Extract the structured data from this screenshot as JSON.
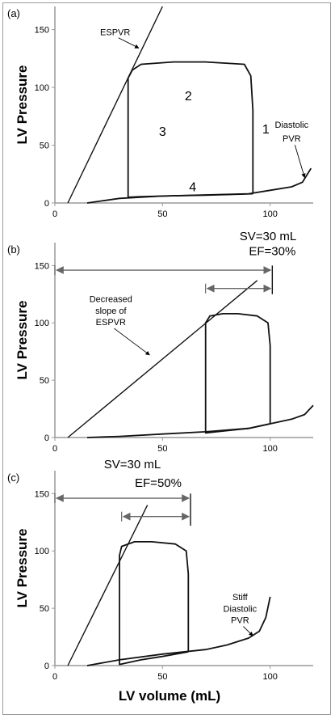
{
  "figure": {
    "x_axis_label": "LV volume (mL)"
  },
  "chart_data": [
    {
      "type": "line",
      "panel_label": "(a)",
      "ylabel": "LV Pressure",
      "xlim": [
        0,
        120
      ],
      "ylim": [
        0,
        170
      ],
      "x_ticks": [
        0,
        50,
        100
      ],
      "y_ticks": [
        0,
        50,
        100,
        150
      ],
      "grid": false,
      "series": [
        {
          "kind": "espvr",
          "x": [
            6,
            50
          ],
          "y": [
            0,
            170
          ]
        },
        {
          "kind": "pv_loop",
          "x": [
            92,
            92,
            91,
            88,
            70,
            55,
            40,
            36,
            34,
            34,
            40,
            55,
            70,
            80,
            92
          ],
          "y": [
            8,
            80,
            110,
            120,
            122,
            122,
            120,
            115,
            108,
            5,
            5.5,
            6.2,
            6.8,
            7.3,
            8
          ]
        },
        {
          "kind": "dpvr",
          "x": [
            15,
            30,
            50,
            70,
            90,
            100,
            110,
            115,
            119
          ],
          "y": [
            0,
            4,
            6,
            7,
            8,
            11,
            14,
            18,
            30
          ]
        }
      ],
      "annotations": [
        {
          "text": "ESPVR",
          "x": 28,
          "y": 145,
          "target": [
            39,
            134
          ]
        },
        {
          "text": "1",
          "x": 98,
          "y": 60
        },
        {
          "text": "2",
          "x": 62,
          "y": 89
        },
        {
          "text": "3",
          "x": 50,
          "y": 58
        },
        {
          "text": "4",
          "x": 64,
          "y": 10
        },
        {
          "text": "Diastolic",
          "x": 110,
          "y": 65
        },
        {
          "text": "PVR",
          "x": 110,
          "y": 53,
          "target": [
            116,
            22
          ]
        }
      ]
    },
    {
      "type": "line",
      "panel_label": "(b)",
      "ylabel": "LV Pressure",
      "xlim": [
        0,
        120
      ],
      "ylim": [
        0,
        170
      ],
      "x_ticks": [
        0,
        50,
        100
      ],
      "y_ticks": [
        0,
        50,
        100,
        150
      ],
      "grid": false,
      "series": [
        {
          "kind": "espvr",
          "x": [
            6,
            94
          ],
          "y": [
            0,
            137
          ]
        },
        {
          "kind": "pv_loop",
          "x": [
            100,
            100,
            99,
            94,
            85,
            78,
            72,
            70,
            70,
            80,
            90,
            100
          ],
          "y": [
            12,
            80,
            100,
            106,
            108,
            108,
            106,
            100,
            4,
            6,
            8,
            12
          ]
        },
        {
          "kind": "dpvr",
          "x": [
            15,
            30,
            50,
            70,
            90,
            100,
            110,
            116,
            120
          ],
          "y": [
            0,
            1,
            3,
            5,
            8,
            12,
            16,
            20,
            28
          ]
        }
      ],
      "markers": [
        {
          "kind": "double_arrow",
          "x": [
            0,
            101
          ],
          "y": 146
        },
        {
          "kind": "double_arrow",
          "x": [
            70,
            101
          ],
          "y": 130
        },
        {
          "kind": "vline",
          "x": 101,
          "y": [
            125,
            150
          ]
        }
      ],
      "annotations": [
        {
          "text": "SV=30 mL",
          "x": 99,
          "y": 172
        },
        {
          "text": "EF=30%",
          "x": 101,
          "y": 159
        },
        {
          "text": "Decreased",
          "x": 26,
          "y": 118
        },
        {
          "text": "slope of",
          "x": 26,
          "y": 108
        },
        {
          "text": "ESPVR",
          "x": 26,
          "y": 98,
          "target": [
            44,
            72
          ]
        }
      ]
    },
    {
      "type": "line",
      "panel_label": "(c)",
      "ylabel": "LV Pressure",
      "xlim": [
        0,
        120
      ],
      "ylim": [
        0,
        170
      ],
      "x_ticks": [
        0,
        50,
        100
      ],
      "y_ticks": [
        0,
        50,
        100,
        150
      ],
      "grid": false,
      "series": [
        {
          "kind": "espvr",
          "x": [
            6,
            43
          ],
          "y": [
            0,
            140
          ]
        },
        {
          "kind": "pv_loop",
          "x": [
            62,
            62,
            61,
            56,
            45,
            37,
            31,
            30,
            30,
            40,
            50,
            62
          ],
          "y": [
            12,
            80,
            100,
            106,
            108,
            108,
            104,
            96,
            1,
            5,
            8,
            12
          ]
        },
        {
          "kind": "dpvr",
          "x": [
            15,
            30,
            50,
            70,
            80,
            90,
            95,
            98,
            100
          ],
          "y": [
            0,
            5,
            10,
            14,
            18,
            24,
            30,
            42,
            60
          ]
        }
      ],
      "markers": [
        {
          "kind": "double_arrow",
          "x": [
            0,
            63
          ],
          "y": 146
        },
        {
          "kind": "double_arrow",
          "x": [
            31,
            63
          ],
          "y": 130
        },
        {
          "kind": "vline",
          "x": 63,
          "y": [
            122,
            150
          ]
        }
      ],
      "annotations": [
        {
          "text": "SV=30 mL",
          "x": 36,
          "y": 172
        },
        {
          "text": "EF=50%",
          "x": 48,
          "y": 156
        },
        {
          "text": "Stiff",
          "x": 86,
          "y": 57
        },
        {
          "text": "Diastolic",
          "x": 86,
          "y": 47
        },
        {
          "text": "PVR",
          "x": 86,
          "y": 37,
          "target": [
            92,
            26
          ]
        }
      ]
    }
  ]
}
